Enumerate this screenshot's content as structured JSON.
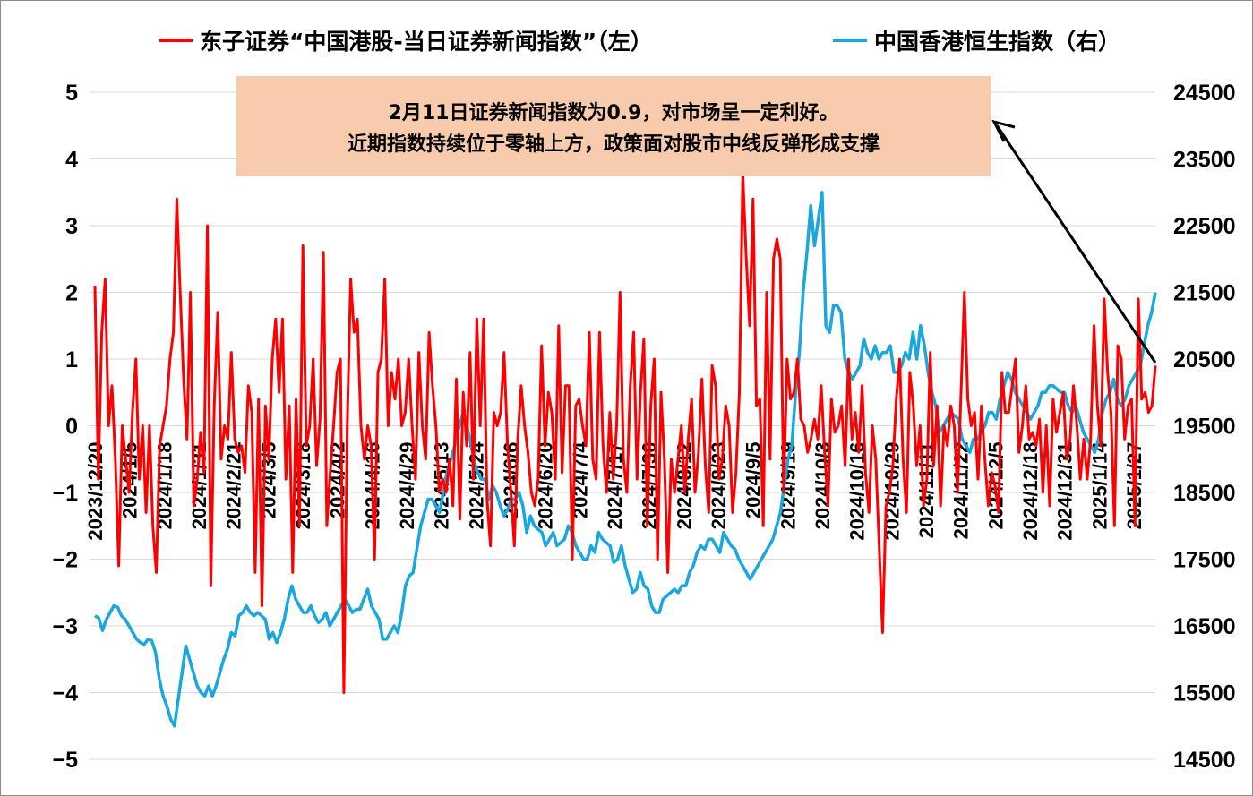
{
  "chart_data": {
    "type": "line",
    "legend": [
      {
        "label": "东子证券“中国港股-当日证券新闻指数”（左）",
        "color": "#ff0000"
      },
      {
        "label": "中国香港恒生指数（右）",
        "color": "#1aa7e0"
      }
    ],
    "legend_position": "top",
    "y_left": {
      "min": -5,
      "max": 5,
      "step": 1,
      "ticks": [
        "5",
        "4",
        "3",
        "2",
        "1",
        "0",
        "−1",
        "−2",
        "−3",
        "−4",
        "−5"
      ]
    },
    "y_right": {
      "min": 14500,
      "max": 24500,
      "step": 1000,
      "ticks": [
        "24500",
        "23500",
        "22500",
        "21500",
        "20500",
        "19500",
        "18500",
        "17500",
        "16500",
        "15500",
        "14500"
      ]
    },
    "x_ticks": [
      "2023/12/20",
      "2024/1/5",
      "2024/1/18",
      "2024/1/31",
      "2024/2/21",
      "2024/3/5",
      "2024/3/18",
      "2024/4/2",
      "2024/4/16",
      "2024/4/29",
      "2024/5/13",
      "2024/5/24",
      "2024/6/6",
      "2024/6/20",
      "2024/7/4",
      "2024/7/17",
      "2024/7/30",
      "2024/8/12",
      "2024/8/23",
      "2024/9/5",
      "2024/9/19",
      "2024/10/3",
      "2024/10/16",
      "2024/10/29",
      "2024/11/11",
      "2024/11/22",
      "2024/12/5",
      "2024/12/18",
      "2024/12/31",
      "2025/1/14",
      "2025/1/27"
    ],
    "grid": "horizontal",
    "series": [
      {
        "name": "东子证券“中国港股-当日证券新闻指数”（左）",
        "axis": "left",
        "color": "#ff0000",
        "values": [
          2.1,
          -0.8,
          1.4,
          2.2,
          0.0,
          0.6,
          -0.5,
          -2.1,
          0.0,
          -0.5,
          -1.0,
          0.2,
          1.0,
          -0.8,
          0.0,
          -1.3,
          0.0,
          -1.5,
          -2.2,
          -0.3,
          0.0,
          0.3,
          1.0,
          1.4,
          3.4,
          2.0,
          0.7,
          -0.2,
          2.0,
          -1.2,
          -0.8,
          -0.1,
          -0.7,
          3.0,
          -2.4,
          0.3,
          1.7,
          -0.5,
          0.0,
          -0.2,
          1.1,
          -0.2,
          -0.4,
          -0.3,
          -0.7,
          0.6,
          0.2,
          -2.2,
          0.4,
          -2.7,
          0.3,
          -0.5,
          1.0,
          1.6,
          0.5,
          1.6,
          -0.8,
          0.3,
          -2.2,
          0.4,
          -1.5,
          2.7,
          -0.3,
          0.0,
          1.0,
          -0.6,
          0.1,
          2.6,
          -1.5,
          -0.7,
          0.0,
          0.8,
          1.0,
          -4.0,
          0.0,
          2.2,
          1.4,
          1.6,
          0.0,
          -0.5,
          0.0,
          -0.3,
          -2.0,
          0.8,
          1.0,
          2.2,
          0.0,
          0.8,
          0.4,
          1.0,
          0.0,
          0.2,
          1.0,
          0.0,
          -0.8,
          1.1,
          0.0,
          -0.5,
          1.4,
          0.6,
          0.0,
          -1.0,
          -0.8,
          -1.0,
          -0.5,
          -1.2,
          0.7,
          -1.4,
          0.5,
          -0.3,
          1.1,
          -0.8,
          1.6,
          0.0,
          1.6,
          -1.1,
          -1.8,
          0.2,
          0.0,
          0.2,
          1.1,
          -0.3,
          -1.0,
          -1.8,
          -0.2,
          0.6,
          0.0,
          -0.4,
          -1.0,
          -1.2,
          -0.8,
          1.2,
          -0.3,
          0.5,
          0.2,
          -0.8,
          1.5,
          -0.7,
          0.6,
          0.6,
          -2.0,
          0.3,
          0.4,
          0.0,
          -0.3,
          1.4,
          -0.5,
          -0.8,
          1.4,
          -0.3,
          -1.0,
          0.2,
          -0.8,
          0.0,
          2.0,
          -0.5,
          -1.0,
          0.6,
          1.4,
          -0.8,
          0.5,
          1.3,
          -1.5,
          0.3,
          1.0,
          -2.0,
          0.5,
          -0.5,
          -2.2,
          -0.5,
          -1.0,
          -0.5,
          0.0,
          -1.0,
          -0.2,
          0.4,
          -1.0,
          -0.4,
          0.7,
          -0.6,
          -1.3,
          0.9,
          0.6,
          -0.8,
          -0.5,
          0.3,
          0.0,
          -1.3,
          -0.7,
          0.5,
          3.8,
          2.5,
          1.5,
          3.4,
          0.3,
          0.4,
          -1.5,
          2.0,
          -0.5,
          2.5,
          2.8,
          2.5,
          -1.0,
          1.0,
          0.4,
          0.5,
          1.0,
          0.1,
          0.0,
          -0.4,
          -0.2,
          0.1,
          -0.2,
          0.6,
          -0.4,
          -1.2,
          0.4,
          -0.1,
          0.0,
          0.3,
          -0.6,
          1.0,
          -0.2,
          0.2,
          -0.4,
          0.6,
          -0.7,
          -1.3,
          0.0,
          -0.5,
          -1.8,
          -3.1,
          -1.2,
          -1.0,
          -0.6,
          0.4,
          1.0,
          -0.5,
          -1.3,
          0.8,
          0.3,
          -0.6,
          0.0,
          -1.2,
          -0.8,
          1.1,
          -0.6,
          0.3,
          -1.2,
          0.0,
          -0.3,
          0.3,
          0.0,
          -1.0,
          0.5,
          2.0,
          0.4,
          0.0,
          0.2,
          -0.8,
          0.3,
          -0.5,
          -1.2,
          -0.7,
          -0.9,
          -1.3,
          0.8,
          0.2,
          0.2,
          0.6,
          1.0,
          -0.4,
          0.0,
          0.6,
          -0.2,
          -0.1,
          -0.3,
          0.1,
          -1.0,
          0.0,
          -1.2,
          0.4,
          -0.1,
          0.2,
          0.5,
          -0.5,
          -0.2,
          0.6,
          0.0,
          -0.8,
          -0.2,
          -0.8,
          -0.2,
          1.5,
          0.3,
          -0.3,
          1.9,
          0.8,
          0.2,
          -1.5,
          1.2,
          1.0,
          -0.2,
          0.3,
          0.4,
          -1.5,
          1.9,
          0.4,
          0.5,
          0.2,
          0.3,
          0.9
        ]
      },
      {
        "name": "中国香港恒生指数（右）",
        "axis": "right",
        "color": "#1aa7e0",
        "values": [
          16650,
          16620,
          16430,
          16600,
          16700,
          16800,
          16780,
          16650,
          16600,
          16500,
          16400,
          16300,
          16250,
          16220,
          16300,
          16280,
          16100,
          15700,
          15450,
          15300,
          15100,
          15000,
          15400,
          15800,
          16200,
          16000,
          15800,
          15600,
          15500,
          15450,
          15600,
          15450,
          15600,
          15800,
          16000,
          16150,
          16400,
          16350,
          16650,
          16700,
          16800,
          16700,
          16650,
          16700,
          16650,
          16600,
          16300,
          16400,
          16250,
          16400,
          16600,
          16900,
          17100,
          16900,
          16800,
          16700,
          16700,
          16800,
          16650,
          16550,
          16600,
          16700,
          16500,
          16600,
          16700,
          16800,
          16900,
          16800,
          16700,
          16750,
          16750,
          16900,
          17050,
          16800,
          16700,
          16600,
          16300,
          16300,
          16400,
          16500,
          16400,
          16700,
          17100,
          17250,
          17300,
          17650,
          18000,
          18200,
          18400,
          18400,
          18300,
          18200,
          18500,
          18800,
          19000,
          19200,
          19450,
          19650,
          19550,
          19300,
          19000,
          18800,
          18700,
          18700,
          18400,
          18600,
          18500,
          18300,
          18150,
          18250,
          18400,
          18400,
          18500,
          18300,
          17900,
          18150,
          18000,
          17950,
          17900,
          17700,
          17800,
          17900,
          17700,
          17750,
          17800,
          18000,
          17900,
          17700,
          17600,
          17500,
          17500,
          17700,
          17600,
          17900,
          17800,
          17750,
          17700,
          17450,
          17500,
          17700,
          17400,
          17200,
          17000,
          17050,
          17300,
          17100,
          17050,
          16800,
          16700,
          16700,
          16900,
          16950,
          17000,
          17050,
          17000,
          17100,
          17100,
          17300,
          17400,
          17600,
          17700,
          17650,
          17800,
          17800,
          17700,
          17600,
          17900,
          17800,
          17700,
          17650,
          17500,
          17400,
          17300,
          17200,
          17300,
          17400,
          17500,
          17600,
          17700,
          17800,
          18000,
          18200,
          18600,
          19000,
          19200,
          20000,
          20600,
          21500,
          22100,
          22800,
          22200,
          22600,
          23000,
          21000,
          20900,
          21300,
          21300,
          21200,
          20500,
          20300,
          20200,
          20300,
          20400,
          20800,
          20600,
          20500,
          20700,
          20500,
          20600,
          20600,
          20700,
          20300,
          20300,
          20400,
          20600,
          20500,
          20900,
          20500,
          21000,
          20700,
          20300,
          20000,
          19800,
          19400,
          19500,
          19600,
          19700,
          19650,
          19600,
          19300,
          19200,
          19100,
          19300,
          19300,
          19400,
          19500,
          19700,
          19700,
          19600,
          19900,
          20100,
          20300,
          20200,
          20000,
          19900,
          19800,
          19700,
          19600,
          19700,
          19800,
          20000,
          20000,
          20100,
          20100,
          20050,
          20000,
          20000,
          19800,
          19700,
          19800,
          19600,
          19400,
          19300,
          19200,
          19100,
          19300,
          19700,
          19900,
          20000,
          20200,
          19900,
          19800,
          19900,
          20100,
          20200,
          20300,
          20400,
          20700,
          21000,
          21200,
          21500
        ]
      }
    ],
    "annotation": {
      "lines": [
        "2月11日证券新闻指数为0.9，对市场呈一定利好。",
        "近期指数持续位于零轴上方，政策面对股市中线反弹形成支撑"
      ],
      "box_color": "#f8cbad"
    }
  }
}
